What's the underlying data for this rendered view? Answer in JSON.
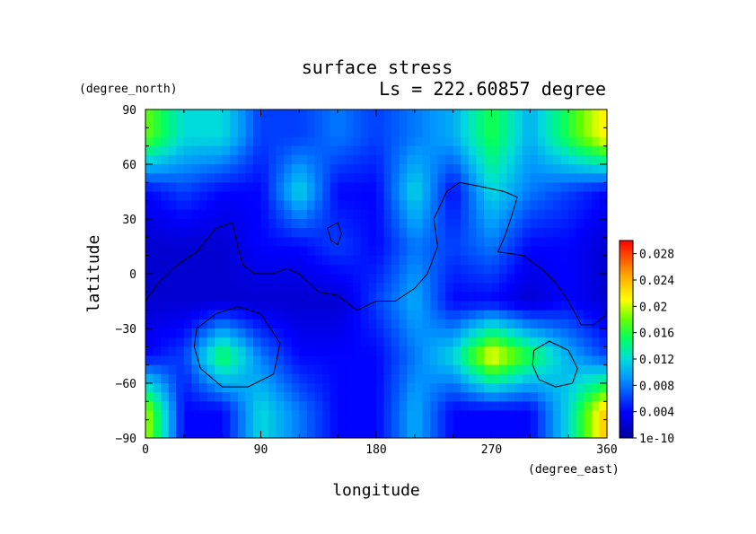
{
  "chart_data": {
    "type": "heatmap",
    "title": "surface stress",
    "subtitle": "Ls = 222.60857 degree",
    "xlabel": "longitude",
    "ylabel": "latitude",
    "x_units": "(degree_east)",
    "y_units": "(degree_north)",
    "xlim": [
      0,
      360
    ],
    "ylim": [
      -90,
      90
    ],
    "x_ticks": [
      "0",
      "90",
      "180",
      "270",
      "360"
    ],
    "y_ticks": [
      "90",
      "60",
      "30",
      "0",
      "−30",
      "−60",
      "−90"
    ],
    "colorbar": {
      "min": 1e-10,
      "max": 0.03,
      "ticks": [
        "1e-10",
        "0.004",
        "0.008",
        "0.012",
        "0.016",
        "0.02",
        "0.024",
        "0.028"
      ],
      "tick_values": [
        0,
        0.004,
        0.008,
        0.012,
        0.016,
        0.02,
        0.024,
        0.028
      ]
    },
    "grid_lon": [
      0,
      30,
      60,
      90,
      120,
      150,
      180,
      210,
      240,
      270,
      300,
      330,
      360
    ],
    "grid_lat": [
      75,
      45,
      15,
      -15,
      -45,
      -75
    ],
    "values": [
      [
        0.018,
        0.012,
        0.012,
        0.006,
        0.006,
        0.008,
        0.006,
        0.008,
        0.01,
        0.016,
        0.01,
        0.016,
        0.022
      ],
      [
        0.004,
        0.006,
        0.004,
        0.004,
        0.012,
        0.004,
        0.004,
        0.012,
        0.004,
        0.012,
        0.008,
        0.006,
        0.004
      ],
      [
        0.002,
        0.002,
        0.002,
        0.004,
        0.004,
        0.006,
        0.004,
        0.008,
        0.006,
        0.008,
        0.004,
        0.004,
        0.002
      ],
      [
        0.002,
        0.002,
        0.002,
        0.002,
        0.002,
        0.002,
        0.006,
        0.01,
        0.004,
        0.004,
        0.002,
        0.004,
        0.002
      ],
      [
        0.004,
        0.006,
        0.016,
        0.008,
        0.004,
        0.004,
        0.004,
        0.008,
        0.012,
        0.022,
        0.016,
        0.01,
        0.006
      ],
      [
        0.02,
        0.004,
        0.004,
        0.012,
        0.008,
        0.004,
        0.004,
        0.01,
        0.004,
        0.004,
        0.004,
        0.012,
        0.024
      ]
    ],
    "contours": [
      {
        "name": "coast-main",
        "points": [
          [
            0,
            -15
          ],
          [
            10,
            -5
          ],
          [
            25,
            5
          ],
          [
            40,
            12
          ],
          [
            55,
            25
          ],
          [
            68,
            28
          ],
          [
            72,
            15
          ],
          [
            76,
            5
          ],
          [
            85,
            0
          ],
          [
            100,
            0
          ],
          [
            110,
            3
          ],
          [
            120,
            0
          ],
          [
            135,
            -10
          ],
          [
            150,
            -12
          ],
          [
            165,
            -20
          ],
          [
            180,
            -15
          ],
          [
            195,
            -15
          ],
          [
            210,
            -8
          ],
          [
            220,
            0
          ],
          [
            228,
            15
          ],
          [
            225,
            30
          ],
          [
            235,
            45
          ],
          [
            245,
            50
          ],
          [
            260,
            48
          ],
          [
            280,
            45
          ],
          [
            290,
            42
          ],
          [
            285,
            30
          ],
          [
            280,
            20
          ],
          [
            275,
            12
          ],
          [
            295,
            10
          ],
          [
            310,
            2
          ],
          [
            320,
            -5
          ],
          [
            330,
            -15
          ],
          [
            340,
            -28
          ],
          [
            350,
            -28
          ],
          [
            360,
            -22
          ]
        ]
      },
      {
        "name": "island-north",
        "points": [
          [
            142,
            25
          ],
          [
            150,
            28
          ],
          [
            153,
            22
          ],
          [
            150,
            16
          ],
          [
            145,
            18
          ],
          [
            142,
            25
          ]
        ]
      },
      {
        "name": "crater-west",
        "points": [
          [
            40,
            -30
          ],
          [
            55,
            -22
          ],
          [
            72,
            -18
          ],
          [
            90,
            -22
          ],
          [
            105,
            -38
          ],
          [
            100,
            -55
          ],
          [
            80,
            -62
          ],
          [
            60,
            -62
          ],
          [
            43,
            -52
          ],
          [
            38,
            -40
          ],
          [
            40,
            -30
          ]
        ]
      },
      {
        "name": "crater-east",
        "points": [
          [
            303,
            -42
          ],
          [
            315,
            -37
          ],
          [
            330,
            -42
          ],
          [
            337,
            -52
          ],
          [
            333,
            -60
          ],
          [
            320,
            -62
          ],
          [
            307,
            -58
          ],
          [
            302,
            -50
          ],
          [
            303,
            -42
          ]
        ]
      }
    ]
  }
}
